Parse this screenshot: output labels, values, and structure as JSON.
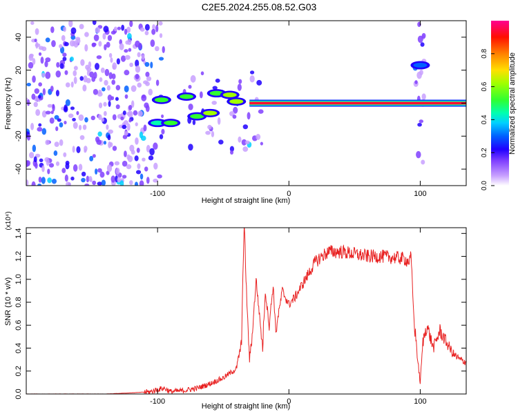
{
  "title": "C2E5.2024.255.08.52.G03",
  "colorbar": {
    "label": "Normalized spectral amplitude",
    "ticks": [
      "0.0",
      "0.2",
      "0.4",
      "0.6",
      "0.8"
    ]
  },
  "chart_data": [
    {
      "type": "heatmap",
      "xlabel": "Height of straight line (km)",
      "ylabel": "Frequency (Hz)",
      "xlim": [
        -200,
        135
      ],
      "ylim": [
        -50,
        50
      ],
      "xticks": [
        -100,
        0,
        100
      ],
      "xticklabels": [
        "-100",
        "0",
        "100"
      ],
      "yticks": [
        -40,
        -20,
        0,
        20,
        40
      ],
      "yticklabels": [
        "-40",
        "-20",
        "0",
        "20",
        "40"
      ],
      "zlim": [
        0,
        1
      ],
      "colormap": [
        "#ffffff",
        "#e6d8ff",
        "#8040ff",
        "#3000e0",
        "#0040ff",
        "#00b0ff",
        "#00ffd0",
        "#40ff40",
        "#d0ff00",
        "#ffd000",
        "#ff6000",
        "#ff0000",
        "#ff0080"
      ],
      "features": [
        {
          "kind": "noise",
          "x_range": [
            -200,
            -105
          ],
          "f_range": [
            -50,
            50
          ],
          "amplitude": 0.15
        },
        {
          "kind": "noise",
          "x_range": [
            -105,
            -95
          ],
          "f_range": [
            -50,
            50
          ],
          "amplitude": 0.08
        },
        {
          "kind": "noise",
          "x_range": [
            -80,
            -20
          ],
          "f_range": [
            -30,
            20
          ],
          "amplitude": 0.06
        },
        {
          "kind": "noise",
          "x_range": [
            96,
            103
          ],
          "f_range": [
            -50,
            50
          ],
          "amplitude": 0.1
        },
        {
          "kind": "carrier",
          "x_range": [
            -30,
            135
          ],
          "f": 0,
          "amplitude": 1.0
        },
        {
          "kind": "blob",
          "x": -100,
          "f": -12,
          "amplitude": 0.4
        },
        {
          "kind": "blob",
          "x": -97,
          "f": 2,
          "amplitude": 0.45
        },
        {
          "kind": "blob",
          "x": -90,
          "f": -12,
          "amplitude": 0.5
        },
        {
          "kind": "blob",
          "x": -78,
          "f": 4,
          "amplitude": 0.45
        },
        {
          "kind": "blob",
          "x": -70,
          "f": -8,
          "amplitude": 0.5
        },
        {
          "kind": "blob",
          "x": -60,
          "f": -6,
          "amplitude": 0.55
        },
        {
          "kind": "blob",
          "x": -55,
          "f": 6,
          "amplitude": 0.5
        },
        {
          "kind": "blob",
          "x": -45,
          "f": 5,
          "amplitude": 0.55
        },
        {
          "kind": "blob",
          "x": -40,
          "f": 1,
          "amplitude": 0.6
        },
        {
          "kind": "blob",
          "x": 100,
          "f": 23,
          "amplitude": 0.3
        }
      ]
    },
    {
      "type": "line",
      "xlabel": "Height of straight line (km)",
      "ylabel": "SNR (10 * v/v)",
      "yscale_label": "(x10⁴)",
      "xlim": [
        -200,
        135
      ],
      "ylim": [
        0,
        1.45
      ],
      "xticks": [
        -100,
        0,
        100
      ],
      "xticklabels": [
        "-100",
        "0",
        "100"
      ],
      "yticks": [
        0,
        0.2,
        0.4,
        0.6,
        0.8,
        1.0,
        1.2,
        1.4
      ],
      "yticklabels": [
        "0.0",
        "0.2",
        "0.4",
        "0.6",
        "0.8",
        "1.0",
        "1.2",
        "1.4"
      ],
      "color": "#e82020",
      "x": [
        -200,
        -180,
        -160,
        -140,
        -120,
        -105,
        -100,
        -95,
        -90,
        -80,
        -70,
        -60,
        -50,
        -45,
        -40,
        -36,
        -35,
        -34,
        -32,
        -30,
        -28,
        -25,
        -20,
        -18,
        -15,
        -12,
        -10,
        -5,
        0,
        5,
        10,
        15,
        20,
        25,
        30,
        40,
        50,
        60,
        70,
        80,
        88,
        90,
        92,
        93,
        94,
        95,
        96,
        97,
        98,
        100,
        102,
        105,
        110,
        115,
        120,
        125,
        130,
        135
      ],
      "y": [
        0.0,
        0.0,
        0.0,
        0.0,
        0.01,
        0.02,
        0.04,
        0.05,
        0.02,
        0.03,
        0.05,
        0.09,
        0.14,
        0.18,
        0.22,
        0.45,
        1.1,
        1.46,
        0.8,
        0.3,
        0.5,
        1.0,
        0.4,
        0.9,
        0.6,
        0.95,
        0.55,
        0.9,
        0.78,
        0.85,
        0.95,
        1.05,
        1.15,
        1.2,
        1.24,
        1.24,
        1.22,
        1.2,
        1.2,
        1.19,
        1.18,
        1.16,
        1.16,
        1.2,
        0.95,
        0.7,
        0.55,
        0.45,
        0.3,
        0.1,
        0.45,
        0.6,
        0.4,
        0.55,
        0.45,
        0.35,
        0.3,
        0.28
      ]
    }
  ]
}
